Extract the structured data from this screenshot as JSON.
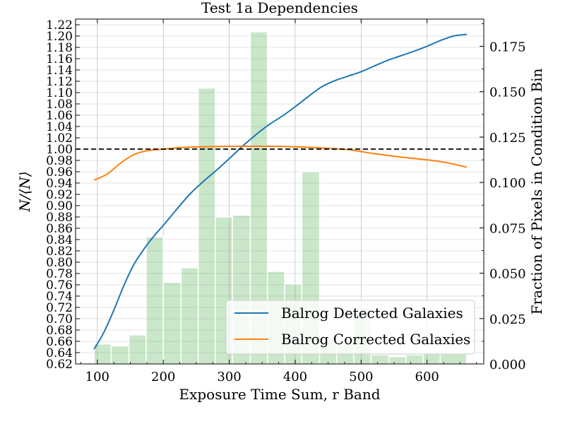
{
  "chart_data": {
    "type": "bar+line",
    "title": "Test 1a Dependencies",
    "xlabel": "Exposure Time Sum, r Band",
    "ylabel_left": "N/⟨N⟩",
    "ylabel_right": "Fraction of Pixels in Condition Bin",
    "xlim": [
      67,
      686
    ],
    "ylim_left": [
      0.62,
      1.23
    ],
    "ylim_right": [
      0.0,
      0.19
    ],
    "x_ticks": [
      100,
      200,
      300,
      400,
      500,
      600
    ],
    "x_tick_labels": [
      "100",
      "200",
      "300",
      "400",
      "500",
      "600"
    ],
    "left_ticks": [
      0.62,
      0.64,
      0.66,
      0.68,
      0.7,
      0.72,
      0.74,
      0.76,
      0.78,
      0.8,
      0.82,
      0.84,
      0.86,
      0.88,
      0.9,
      0.92,
      0.94,
      0.96,
      0.98,
      1.0,
      1.02,
      1.04,
      1.06,
      1.08,
      1.1,
      1.12,
      1.14,
      1.16,
      1.18,
      1.2,
      1.22
    ],
    "left_tick_labels": [
      "0.62",
      "0.64",
      "0.66",
      "0.68",
      "0.70",
      "0.72",
      "0.74",
      "0.76",
      "0.78",
      "0.80",
      "0.82",
      "0.84",
      "0.86",
      "0.88",
      "0.90",
      "0.92",
      "0.94",
      "0.96",
      "0.98",
      "1.00",
      "1.02",
      "1.04",
      "1.06",
      "1.08",
      "1.10",
      "1.12",
      "1.14",
      "1.16",
      "1.18",
      "1.20",
      "1.22"
    ],
    "right_ticks": [
      0.0,
      0.025,
      0.05,
      0.075,
      0.1,
      0.125,
      0.15,
      0.175
    ],
    "right_tick_labels": [
      "0.000",
      "0.025",
      "0.050",
      "0.075",
      "0.100",
      "0.125",
      "0.150",
      "0.175"
    ],
    "reference_line": {
      "y": 1.0,
      "style": "dashed",
      "color": "#000000"
    },
    "grid": true,
    "legend": "bottom-right",
    "histogram": {
      "color": "#2ca02c",
      "axis": "right",
      "bin_edges": [
        95,
        121,
        148,
        174,
        200,
        227,
        253,
        279,
        305,
        332,
        358,
        384,
        410,
        437,
        463,
        489,
        515,
        542,
        568,
        594,
        620,
        660
      ],
      "values": [
        0.011,
        0.01,
        0.016,
        0.07,
        0.045,
        0.053,
        0.152,
        0.081,
        0.082,
        0.183,
        0.051,
        0.044,
        0.106,
        0.014,
        0.012,
        0.031,
        0.005,
        0.004,
        0.005,
        0.006,
        0.006
      ]
    },
    "series": [
      {
        "name": "Balrog Detected Galaxies",
        "color": "#1f77b4",
        "axis": "left",
        "x": [
          95,
          110,
          125,
          140,
          155,
          170,
          185,
          200,
          220,
          240,
          260,
          280,
          300,
          320,
          340,
          360,
          380,
          400,
          420,
          440,
          460,
          480,
          500,
          520,
          540,
          560,
          580,
          600,
          620,
          640,
          660
        ],
        "y": [
          0.646,
          0.676,
          0.715,
          0.758,
          0.795,
          0.822,
          0.845,
          0.865,
          0.893,
          0.92,
          0.942,
          0.962,
          0.983,
          1.005,
          1.025,
          1.043,
          1.058,
          1.075,
          1.093,
          1.11,
          1.121,
          1.129,
          1.137,
          1.147,
          1.157,
          1.165,
          1.173,
          1.182,
          1.192,
          1.2,
          1.203
        ]
      },
      {
        "name": "Balrog Corrected Galaxies",
        "color": "#ff7f0e",
        "axis": "left",
        "x": [
          95,
          115,
          135,
          155,
          175,
          200,
          230,
          260,
          300,
          340,
          370,
          400,
          440,
          480,
          520,
          560,
          600,
          630,
          660
        ],
        "y": [
          0.945,
          0.956,
          0.975,
          0.99,
          0.997,
          1.0,
          1.003,
          1.004,
          1.005,
          1.005,
          1.005,
          1.004,
          1.002,
          0.999,
          0.992,
          0.986,
          0.981,
          0.976,
          0.968
        ]
      }
    ]
  }
}
